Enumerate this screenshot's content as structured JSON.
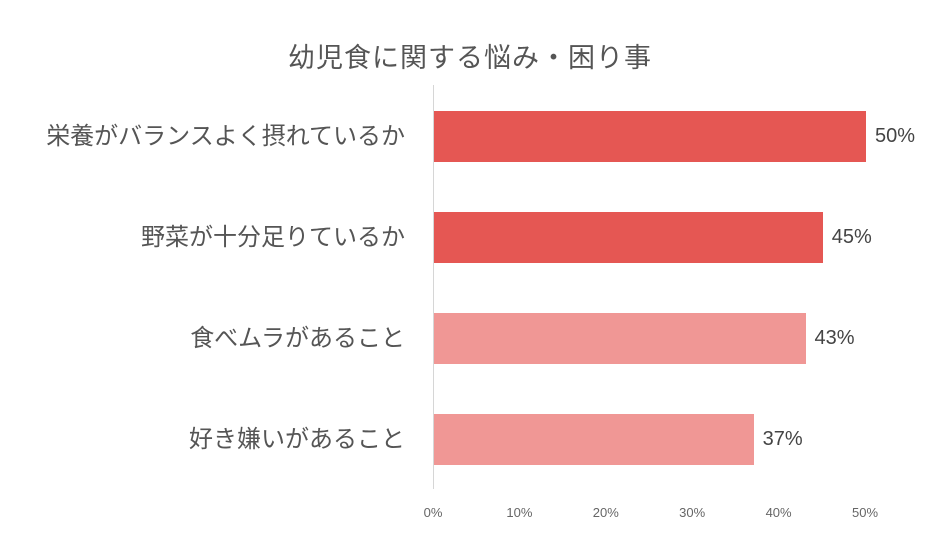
{
  "chart_data": {
    "type": "bar",
    "orientation": "horizontal",
    "title": "幼児食に関する悩み・困り事",
    "categories": [
      "栄養がバランスよく摂れているか",
      "野菜が十分足りているか",
      "食べムラがあること",
      "好き嫌いがあること"
    ],
    "values": [
      50,
      45,
      43,
      37
    ],
    "value_labels": [
      "50%",
      "45%",
      "43%",
      "37%"
    ],
    "bar_colors": [
      "#E55753",
      "#E55753",
      "#F09795",
      "#F09795"
    ],
    "xlabel": "",
    "ylabel": "",
    "xlim": [
      0,
      50
    ],
    "x_ticks": [
      "0%",
      "10%",
      "20%",
      "30%",
      "40%",
      "50%"
    ],
    "grid": false,
    "legend": null
  }
}
